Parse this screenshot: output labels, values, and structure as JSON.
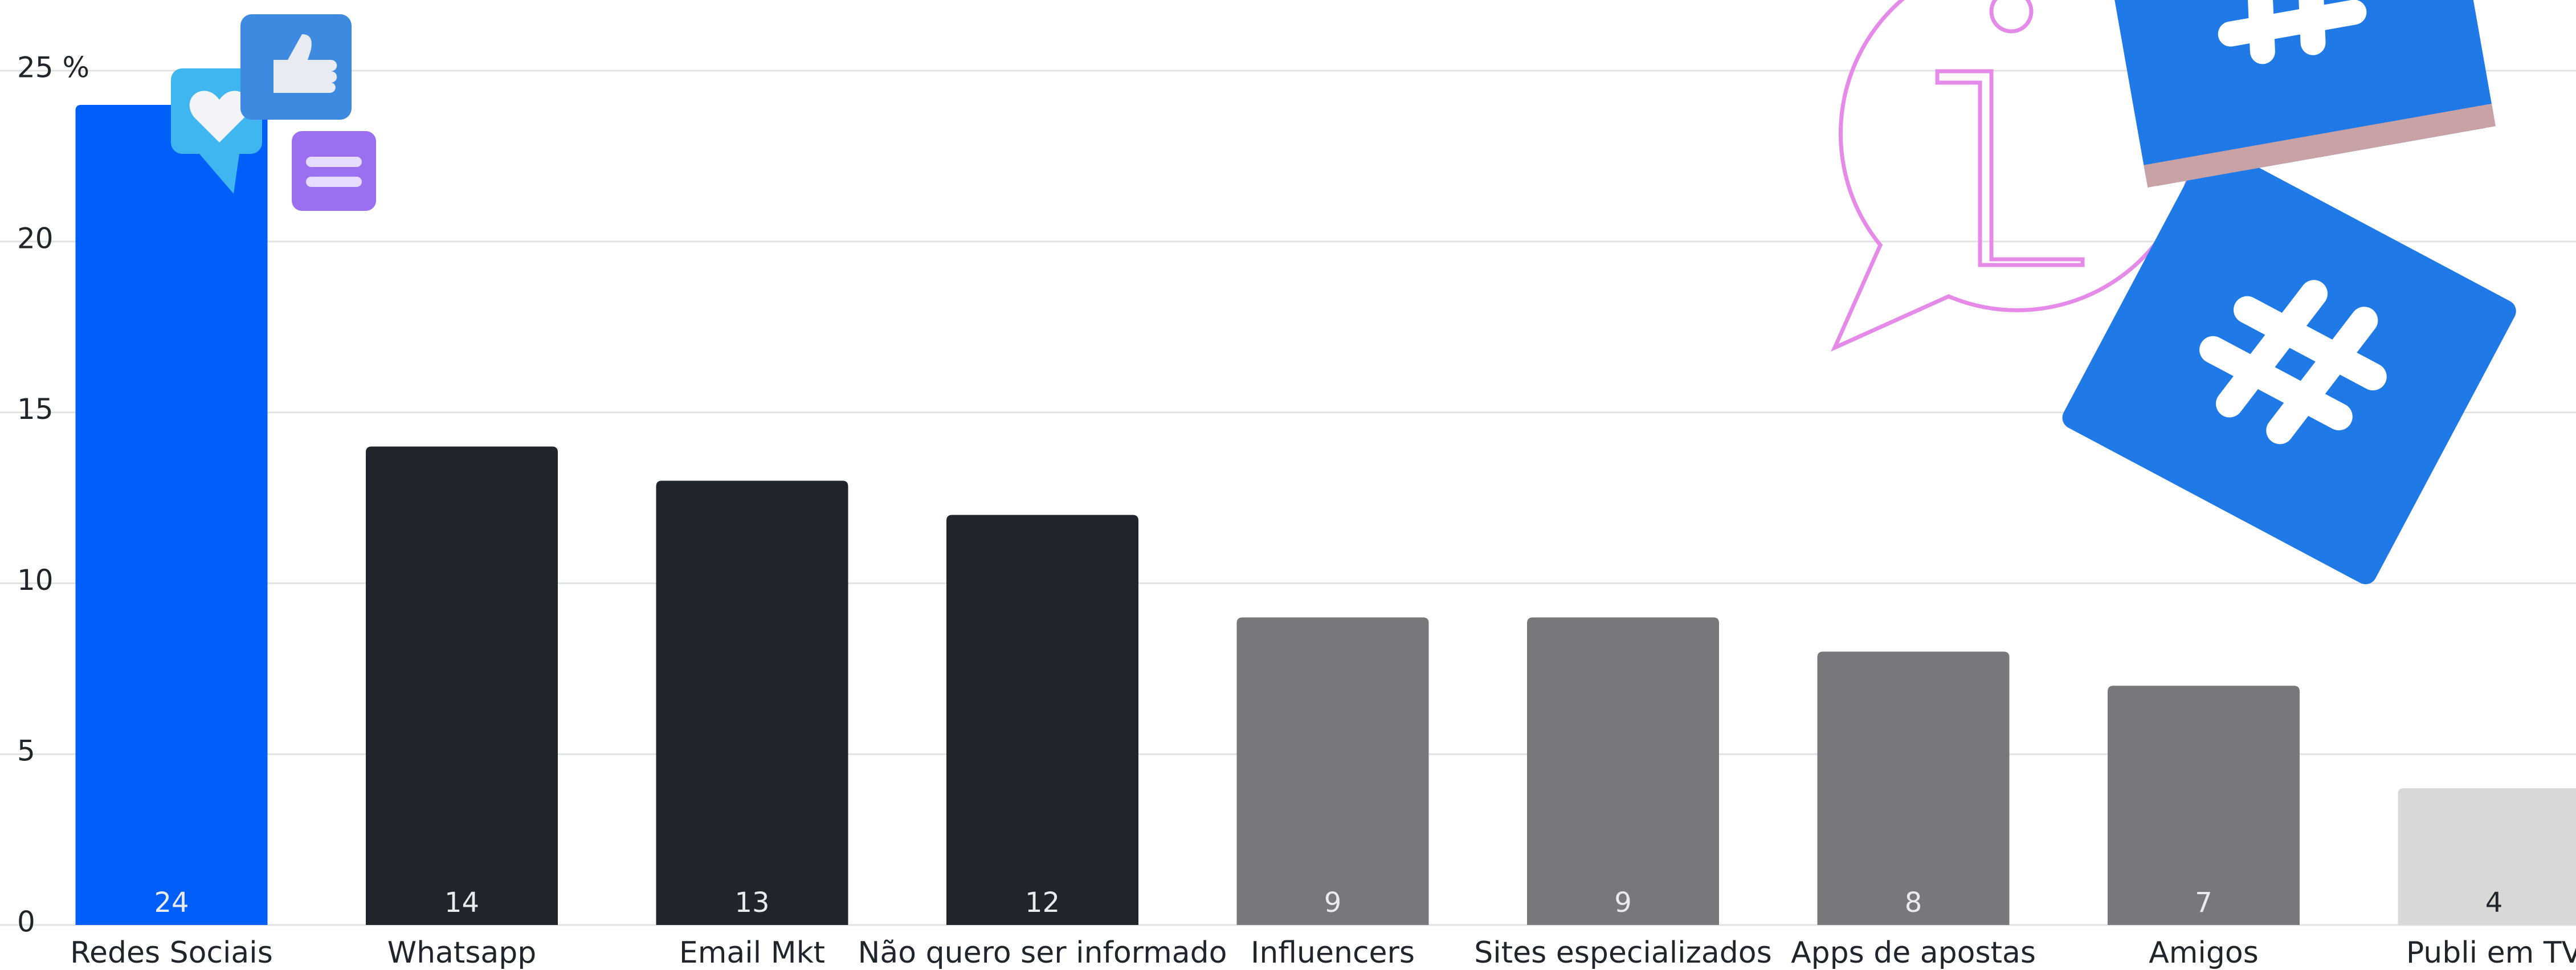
{
  "chart_data": {
    "type": "bar",
    "categories": [
      "Redes Sociais",
      "Whatsapp",
      "Email Mkt",
      "Não quero ser informado",
      "Influencers",
      "Sites especializados",
      "Apps de apostas",
      "Amigos",
      "Publi em TV"
    ],
    "values": [
      24,
      14,
      13,
      12,
      9,
      9,
      8,
      7,
      4
    ],
    "colors": [
      "#005ff9",
      "#1f252b",
      "#1f252b",
      "#1f252b",
      "#76787b",
      "#76787b",
      "#76787b",
      "#76787b",
      "#d8d9d6"
    ],
    "ylim": [
      0,
      25
    ],
    "yticks": [
      0,
      5,
      10,
      15,
      20,
      {
        "value": 25,
        "label": "25 %"
      }
    ],
    "grid": true
  }
}
